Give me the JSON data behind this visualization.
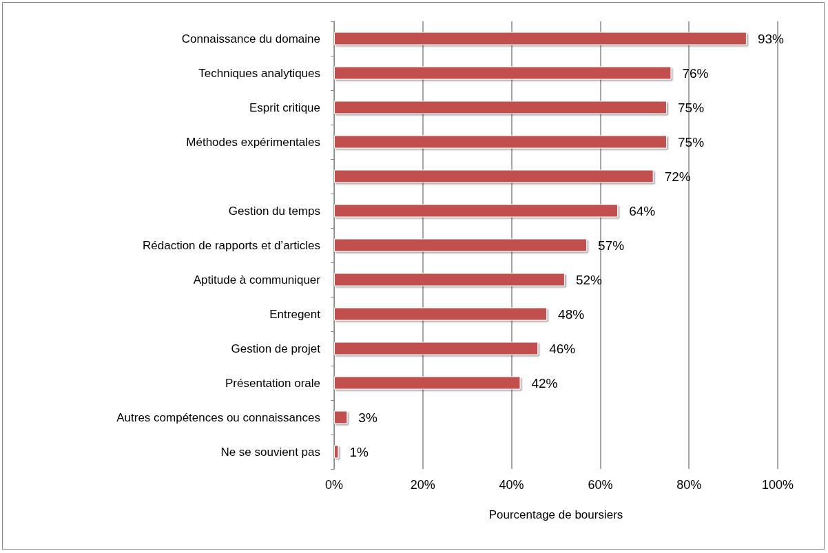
{
  "chart_data": {
    "type": "bar",
    "orientation": "horizontal",
    "xlabel": "Pourcentage de boursiers",
    "categories": [
      "Connaissance du domaine",
      "Techniques analytiques",
      "Esprit critique",
      "Méthodes expérimentales",
      null,
      "Gestion du temps",
      "Rédaction de rapports et d’articles",
      "Aptitude à communiquer",
      "Entregent",
      "Gestion de projet",
      "Présentation orale",
      "Autres compétences ou connaissances",
      "Ne se souvient pas"
    ],
    "values": [
      93,
      76,
      75,
      75,
      72,
      64,
      57,
      52,
      48,
      46,
      42,
      3,
      1
    ],
    "value_labels": [
      "93%",
      "76%",
      "75%",
      "75%",
      "72%",
      "64%",
      "57%",
      "52%",
      "48%",
      "46%",
      "42%",
      "3%",
      "1%"
    ],
    "color": "#c0504d",
    "xlim": [
      0,
      100
    ],
    "xticks": [
      {
        "value": 0,
        "label": "0%"
      },
      {
        "value": 20,
        "label": "20%"
      },
      {
        "value": 40,
        "label": "40%"
      },
      {
        "value": 60,
        "label": "60%"
      },
      {
        "value": 80,
        "label": "80%"
      },
      {
        "value": 100,
        "label": "100%"
      }
    ],
    "grid": "x"
  }
}
